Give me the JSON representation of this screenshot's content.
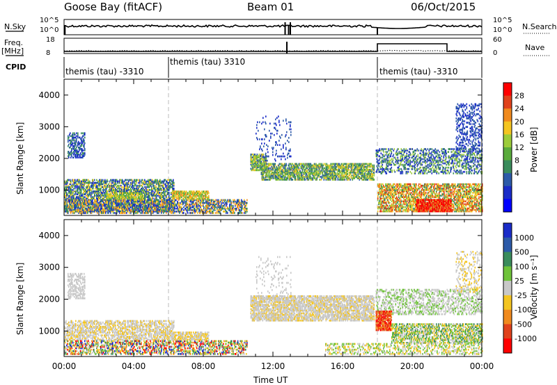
{
  "header": {
    "station": "Goose Bay (fitACF)",
    "beam": "Beam 01",
    "date": "06/Oct/2015"
  },
  "top_panels": {
    "nsky_label": "N.Sky",
    "nsky_ticks": [
      "10^5",
      "10^0"
    ],
    "nsearch_label": "N.Search",
    "nsearch_ticks": [
      "10^5",
      "10^0"
    ],
    "freq_label": "Freq.",
    "freq_unit": "[MHz]",
    "freq_ticks": [
      "18",
      "8"
    ],
    "nave_label": "Nave",
    "nave_ticks": [
      "60",
      "0"
    ],
    "cpid_label": "CPID",
    "cpid_segments": [
      {
        "start_hour": 0,
        "text": "themis (tau) -3310"
      },
      {
        "start_hour": 6,
        "text": "themis (tau) 3310"
      },
      {
        "start_hour": 18,
        "text": "themis (tau) -3310"
      }
    ]
  },
  "chart_data": [
    {
      "type": "heatmap",
      "panel": "power",
      "ylabel": "Slant Range [km]",
      "colorbar_label": "Power [dB]",
      "colorbar_ticks": [
        "28",
        "24",
        "20",
        "16",
        "12",
        "8",
        "4"
      ],
      "colorbar_colors": [
        "#ff0000",
        "#e0421c",
        "#f08a1e",
        "#f4c521",
        "#9ccc3a",
        "#5aab3c",
        "#3a8c5c",
        "#2c5aa8",
        "#1a2cc8",
        "#0000ff"
      ],
      "ylim": [
        200,
        4500
      ],
      "y_ticks": [
        "1000",
        "2000",
        "3000",
        "4000"
      ],
      "xlim_hours": [
        0,
        24
      ],
      "bands": [
        {
          "t0": 0.2,
          "t1": 1.2,
          "r0": 2000,
          "r1": 2800,
          "density": 0.45,
          "palette": [
            7,
            8,
            6
          ]
        },
        {
          "t0": 0,
          "t1": 6.3,
          "r0": 300,
          "r1": 1300,
          "density": 0.55,
          "palette": [
            6,
            7,
            8,
            5,
            3
          ]
        },
        {
          "t0": 0,
          "t1": 10.5,
          "r0": 250,
          "r1": 700,
          "density": 0.5,
          "palette": [
            7,
            6,
            3,
            2,
            8
          ]
        },
        {
          "t0": 6.2,
          "t1": 8.3,
          "r0": 700,
          "r1": 950,
          "density": 0.7,
          "palette": [
            4,
            3,
            5,
            2
          ]
        },
        {
          "t0": 2.4,
          "t1": 4.5,
          "r0": 700,
          "r1": 900,
          "density": 0.6,
          "palette": [
            3,
            4,
            5
          ]
        },
        {
          "t0": 10.7,
          "t1": 11.6,
          "r0": 1600,
          "r1": 2100,
          "density": 0.7,
          "palette": [
            3,
            4,
            5,
            7
          ]
        },
        {
          "t0": 11.3,
          "t1": 17.8,
          "r0": 1300,
          "r1": 1800,
          "density": 0.65,
          "palette": [
            5,
            4,
            3,
            6,
            7
          ]
        },
        {
          "t0": 11.0,
          "t1": 13.0,
          "r0": 1900,
          "r1": 3300,
          "density": 0.08,
          "palette": [
            7,
            8
          ]
        },
        {
          "t0": 17.9,
          "t1": 24.0,
          "r0": 1500,
          "r1": 2300,
          "density": 0.35,
          "palette": [
            7,
            8,
            6,
            4
          ]
        },
        {
          "t0": 18.0,
          "t1": 24.0,
          "r0": 300,
          "r1": 1200,
          "density": 0.55,
          "palette": [
            2,
            1,
            3,
            4,
            6
          ]
        },
        {
          "t0": 20.2,
          "t1": 22.2,
          "r0": 300,
          "r1": 700,
          "density": 0.8,
          "palette": [
            0,
            1,
            0,
            2
          ]
        },
        {
          "t0": 22.5,
          "t1": 24.0,
          "r0": 2200,
          "r1": 3700,
          "density": 0.25,
          "palette": [
            7,
            8
          ]
        }
      ]
    },
    {
      "type": "heatmap",
      "panel": "velocity",
      "ylabel": "Slant Range [km]",
      "colorbar_label": "Velocity [m s⁻¹]",
      "colorbar_ticks": [
        "1000",
        "500",
        "100",
        "25",
        "-25",
        "-100",
        "-500",
        "-1000"
      ],
      "colorbar_colors": [
        "#1a2cc8",
        "#2c5aa8",
        "#3a8c5c",
        "#6fc33a",
        "#c8c8c8",
        "#f4c521",
        "#f08a1e",
        "#e0421c",
        "#ff0000"
      ],
      "ylim": [
        200,
        4500
      ],
      "y_ticks": [
        "1000",
        "2000",
        "3000",
        "4000"
      ],
      "xlim_hours": [
        0,
        24
      ],
      "bands": [
        {
          "t0": 0.2,
          "t1": 1.2,
          "r0": 2000,
          "r1": 2800,
          "density": 0.45,
          "palette": [
            4
          ]
        },
        {
          "t0": 0,
          "t1": 6.3,
          "r0": 700,
          "r1": 1300,
          "density": 0.5,
          "palette": [
            4,
            4,
            5
          ]
        },
        {
          "t0": 0,
          "t1": 10.5,
          "r0": 250,
          "r1": 700,
          "density": 0.45,
          "palette": [
            5,
            6,
            3,
            2,
            4,
            8,
            0
          ]
        },
        {
          "t0": 6.2,
          "t1": 8.3,
          "r0": 700,
          "r1": 950,
          "density": 0.6,
          "palette": [
            4,
            5
          ]
        },
        {
          "t0": 10.7,
          "t1": 17.8,
          "r0": 1300,
          "r1": 2100,
          "density": 0.65,
          "palette": [
            4,
            4,
            4,
            5
          ]
        },
        {
          "t0": 11.0,
          "t1": 13.0,
          "r0": 1900,
          "r1": 3300,
          "density": 0.08,
          "palette": [
            4
          ]
        },
        {
          "t0": 17.9,
          "t1": 24.0,
          "r0": 1500,
          "r1": 2300,
          "density": 0.35,
          "palette": [
            4,
            4,
            3
          ]
        },
        {
          "t0": 17.9,
          "t1": 18.8,
          "r0": 1000,
          "r1": 1600,
          "density": 0.75,
          "palette": [
            7,
            6,
            8
          ]
        },
        {
          "t0": 18.8,
          "t1": 24.0,
          "r0": 600,
          "r1": 1200,
          "density": 0.55,
          "palette": [
            3,
            4,
            2,
            5
          ]
        },
        {
          "t0": 15.0,
          "t1": 24.0,
          "r0": 250,
          "r1": 600,
          "density": 0.3,
          "palette": [
            5,
            4,
            3
          ]
        },
        {
          "t0": 22.5,
          "t1": 24.0,
          "r0": 2200,
          "r1": 3500,
          "density": 0.2,
          "palette": [
            4,
            5
          ]
        }
      ],
      "xlabel": "Time UT",
      "x_ticks": [
        "00:00",
        "04:00",
        "08:00",
        "12:00",
        "16:00",
        "20:00",
        "00:00"
      ]
    }
  ]
}
